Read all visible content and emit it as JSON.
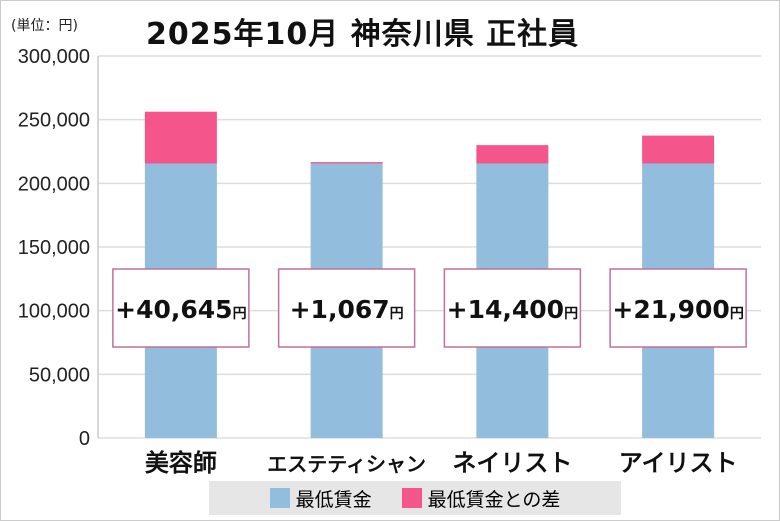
{
  "chart_data": {
    "type": "bar",
    "stacked": true,
    "title": "2025年10月 神奈川県 正社員",
    "unit_label": "(単位：円)",
    "categories": [
      "美容師",
      "エステティシャン",
      "ネイリスト",
      "アイリスト"
    ],
    "series": [
      {
        "name": "最低賃金",
        "color": "#92bddc",
        "values": [
          215600,
          215600,
          215600,
          215600
        ]
      },
      {
        "name": "最低賃金との差",
        "color": "#f4558a",
        "values": [
          40645,
          1067,
          14400,
          21900
        ]
      }
    ],
    "data_labels": [
      "+40,645",
      "+1,067",
      "+14,400",
      "+21,900"
    ],
    "data_label_suffix": "円",
    "ylim": [
      0,
      300000
    ],
    "yticks": [
      "0",
      "50,000",
      "100,000",
      "150,000",
      "200,000",
      "250,000",
      "300,000"
    ],
    "grid": true,
    "legend_position": "bottom"
  }
}
